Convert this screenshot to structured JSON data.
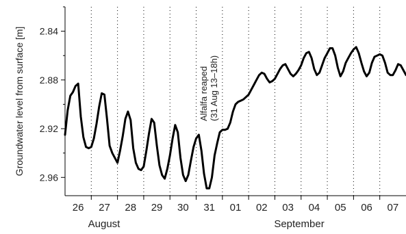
{
  "chart_data": {
    "type": "line",
    "title": "",
    "xlabel": "",
    "ylabel": "Groundwater level from surface [m]",
    "y_reversed": true,
    "ylim": [
      2.82,
      2.975
    ],
    "y_ticks": [
      2.84,
      2.88,
      2.92,
      2.96
    ],
    "y_tick_labels": [
      "2.84",
      "2.88",
      "2.92",
      "2.96"
    ],
    "x_unit": "days from 26 Aug 00h",
    "xlim": [
      0,
      13
    ],
    "day_labels": [
      "26",
      "27",
      "28",
      "29",
      "30",
      "31",
      "01",
      "02",
      "03",
      "04",
      "05",
      "06",
      "07"
    ],
    "month_labels": [
      "August",
      "September"
    ],
    "grid": "vertical dotted at day boundaries",
    "annotation": {
      "line1": "Alfalfa reaped",
      "line2": "(31 Aug 13–18h)",
      "x": 5.6,
      "y": 2.905
    },
    "series": [
      {
        "name": "",
        "color": "#000000",
        "points": [
          [
            0.0,
            2.925
          ],
          [
            0.1,
            2.905
          ],
          [
            0.2,
            2.893
          ],
          [
            0.3,
            2.89
          ],
          [
            0.4,
            2.885
          ],
          [
            0.5,
            2.883
          ],
          [
            0.6,
            2.91
          ],
          [
            0.7,
            2.927
          ],
          [
            0.8,
            2.935
          ],
          [
            0.9,
            2.936
          ],
          [
            1.0,
            2.935
          ],
          [
            1.1,
            2.928
          ],
          [
            1.2,
            2.916
          ],
          [
            1.3,
            2.902
          ],
          [
            1.4,
            2.891
          ],
          [
            1.5,
            2.892
          ],
          [
            1.6,
            2.912
          ],
          [
            1.7,
            2.934
          ],
          [
            1.8,
            2.94
          ],
          [
            1.9,
            2.944
          ],
          [
            2.0,
            2.948
          ],
          [
            2.1,
            2.938
          ],
          [
            2.2,
            2.926
          ],
          [
            2.3,
            2.912
          ],
          [
            2.4,
            2.906
          ],
          [
            2.5,
            2.913
          ],
          [
            2.6,
            2.936
          ],
          [
            2.7,
            2.948
          ],
          [
            2.8,
            2.953
          ],
          [
            2.9,
            2.954
          ],
          [
            3.0,
            2.951
          ],
          [
            3.1,
            2.938
          ],
          [
            3.2,
            2.924
          ],
          [
            3.3,
            2.912
          ],
          [
            3.4,
            2.915
          ],
          [
            3.5,
            2.934
          ],
          [
            3.6,
            2.95
          ],
          [
            3.7,
            2.958
          ],
          [
            3.8,
            2.961
          ],
          [
            3.9,
            2.953
          ],
          [
            4.0,
            2.942
          ],
          [
            4.1,
            2.928
          ],
          [
            4.2,
            2.917
          ],
          [
            4.3,
            2.923
          ],
          [
            4.4,
            2.944
          ],
          [
            4.5,
            2.958
          ],
          [
            4.6,
            2.963
          ],
          [
            4.7,
            2.958
          ],
          [
            4.8,
            2.946
          ],
          [
            4.9,
            2.935
          ],
          [
            5.0,
            2.928
          ],
          [
            5.1,
            2.925
          ],
          [
            5.2,
            2.938
          ],
          [
            5.3,
            2.957
          ],
          [
            5.4,
            2.969
          ],
          [
            5.5,
            2.969
          ],
          [
            5.6,
            2.96
          ],
          [
            5.7,
            2.942
          ],
          [
            5.8,
            2.932
          ],
          [
            5.9,
            2.923
          ],
          [
            6.0,
            2.921
          ],
          [
            6.1,
            2.921
          ],
          [
            6.2,
            2.92
          ],
          [
            6.3,
            2.915
          ],
          [
            6.4,
            2.906
          ],
          [
            6.5,
            2.9
          ],
          [
            6.6,
            2.898
          ],
          [
            6.7,
            2.897
          ],
          [
            6.8,
            2.896
          ],
          [
            6.9,
            2.894
          ],
          [
            7.0,
            2.892
          ],
          [
            7.1,
            2.888
          ],
          [
            7.2,
            2.884
          ],
          [
            7.3,
            2.88
          ],
          [
            7.4,
            2.876
          ],
          [
            7.5,
            2.874
          ],
          [
            7.6,
            2.875
          ],
          [
            7.7,
            2.879
          ],
          [
            7.8,
            2.882
          ],
          [
            7.9,
            2.881
          ],
          [
            8.0,
            2.879
          ],
          [
            8.1,
            2.875
          ],
          [
            8.2,
            2.871
          ],
          [
            8.3,
            2.868
          ],
          [
            8.4,
            2.867
          ],
          [
            8.5,
            2.871
          ],
          [
            8.6,
            2.875
          ],
          [
            8.7,
            2.877
          ],
          [
            8.8,
            2.875
          ],
          [
            8.9,
            2.872
          ],
          [
            9.0,
            2.868
          ],
          [
            9.1,
            2.862
          ],
          [
            9.2,
            2.858
          ],
          [
            9.3,
            2.857
          ],
          [
            9.4,
            2.862
          ],
          [
            9.5,
            2.871
          ],
          [
            9.6,
            2.876
          ],
          [
            9.7,
            2.874
          ],
          [
            9.8,
            2.868
          ],
          [
            9.9,
            2.862
          ],
          [
            10.0,
            2.858
          ],
          [
            10.1,
            2.854
          ],
          [
            10.2,
            2.854
          ],
          [
            10.3,
            2.86
          ],
          [
            10.4,
            2.87
          ],
          [
            10.5,
            2.877
          ],
          [
            10.6,
            2.873
          ],
          [
            10.7,
            2.866
          ],
          [
            10.8,
            2.862
          ],
          [
            10.9,
            2.858
          ],
          [
            11.0,
            2.855
          ],
          [
            11.1,
            2.853
          ],
          [
            11.2,
            2.858
          ],
          [
            11.3,
            2.866
          ],
          [
            11.4,
            2.873
          ],
          [
            11.5,
            2.877
          ],
          [
            11.6,
            2.874
          ],
          [
            11.7,
            2.866
          ],
          [
            11.8,
            2.861
          ],
          [
            11.9,
            2.86
          ],
          [
            12.0,
            2.859
          ],
          [
            12.1,
            2.86
          ],
          [
            12.2,
            2.866
          ],
          [
            12.3,
            2.874
          ],
          [
            12.4,
            2.876
          ],
          [
            12.5,
            2.876
          ],
          [
            12.6,
            2.872
          ],
          [
            12.7,
            2.867
          ],
          [
            12.8,
            2.868
          ],
          [
            12.9,
            2.872
          ],
          [
            13.0,
            2.876
          ]
        ]
      }
    ]
  }
}
